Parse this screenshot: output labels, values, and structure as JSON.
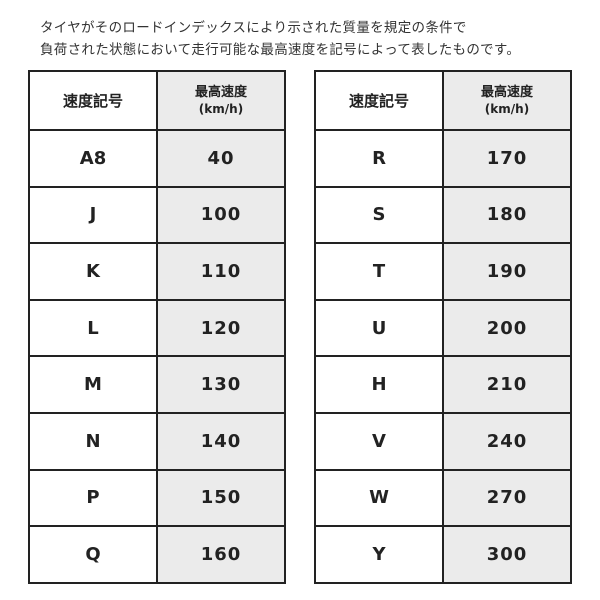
{
  "intro": [
    "タイヤがそのロードインデックスにより示された質量を規定の条件で",
    "負荷された状態において走行可能な最高速度を記号によって表したものです。"
  ],
  "headers": {
    "symbol": "速度記号",
    "speed": "最高速度",
    "unit": "(km/h)"
  },
  "left_rows": [
    [
      "A8",
      "40"
    ],
    [
      "J",
      "100"
    ],
    [
      "K",
      "110"
    ],
    [
      "L",
      "120"
    ],
    [
      "M",
      "130"
    ],
    [
      "N",
      "140"
    ],
    [
      "P",
      "150"
    ],
    [
      "Q",
      "160"
    ]
  ],
  "right_rows": [
    [
      "R",
      "170"
    ],
    [
      "S",
      "180"
    ],
    [
      "T",
      "190"
    ],
    [
      "U",
      "200"
    ],
    [
      "H",
      "210"
    ],
    [
      "V",
      "240"
    ],
    [
      "W",
      "270"
    ],
    [
      "Y",
      "300"
    ]
  ],
  "colors": {
    "speed_column_bg": "#ebebeb",
    "border": "#222222"
  }
}
